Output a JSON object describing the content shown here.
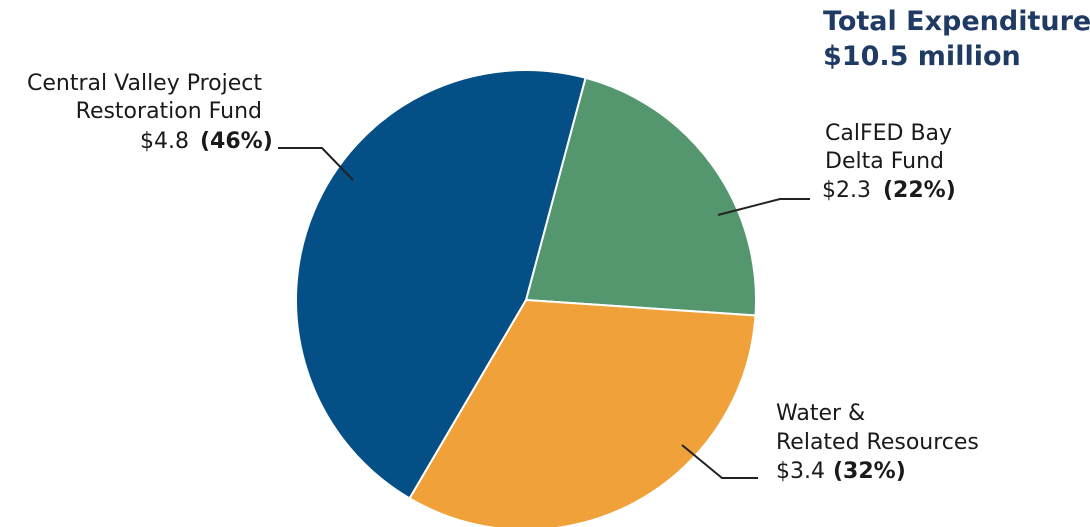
{
  "chart_data": {
    "type": "pie",
    "title": "Total Expenditures:",
    "subtitle": "$10.5 million",
    "slices": [
      {
        "label_lines": [
          "CalFED Bay",
          "Delta Fund"
        ],
        "value": 2.3,
        "value_text": "$2.3",
        "percent": 22,
        "percent_text": "(22%)",
        "color": "#54966d"
      },
      {
        "label_lines": [
          "Water &",
          "Related Resources"
        ],
        "value": 3.4,
        "value_text": "$3.4",
        "percent": 32,
        "percent_text": "(32%)",
        "color": "#f0a13a"
      },
      {
        "label_lines": [
          "Central Valley Project",
          "Restoration Fund"
        ],
        "value": 4.8,
        "value_text": "$4.8",
        "percent": 46,
        "percent_text": "(46%)",
        "color": "#034f86"
      }
    ]
  }
}
